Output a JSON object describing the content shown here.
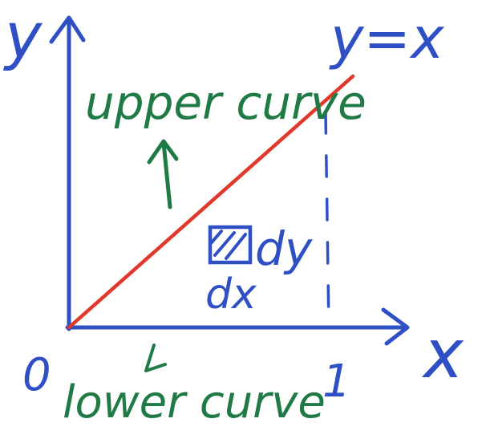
{
  "diagram": {
    "axis_y_label": "y",
    "axis_x_label": "x",
    "line_label": "y=x",
    "upper_label": "upper curve",
    "lower_label": "lower curve",
    "origin_label": "0",
    "x_tick_label": "1",
    "dy_label": "dy",
    "dx_label": "dx"
  },
  "colors": {
    "axis": "#2f4fc4",
    "line": "#e0392b",
    "annotation": "#1f7a45"
  }
}
